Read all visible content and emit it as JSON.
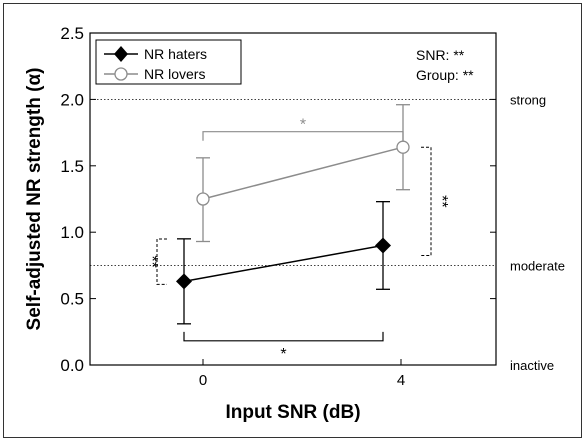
{
  "chart_data": {
    "type": "line",
    "xlabel": "Input SNR (dB)",
    "ylabel": "Self-adjusted NR strength (α)",
    "x": [
      0,
      4
    ],
    "x_ticks": [
      "0",
      "4"
    ],
    "ylim": [
      0,
      2.5
    ],
    "y_ticks": [
      "0.0",
      "0.5",
      "1.0",
      "1.5",
      "2.0",
      "2.5"
    ],
    "series": [
      {
        "name": "NR haters",
        "color": "#000000",
        "marker": "diamond-filled",
        "y": [
          0.63,
          0.9
        ],
        "err_low": [
          0.31,
          0.57
        ],
        "err_high": [
          0.95,
          1.23
        ]
      },
      {
        "name": "NR lovers",
        "color": "#8c8c8c",
        "marker": "circle-open",
        "y": [
          1.25,
          1.64
        ],
        "err_low": [
          0.93,
          1.32
        ],
        "err_high": [
          1.56,
          1.96
        ]
      }
    ],
    "reference_lines": [
      {
        "y": 2.0,
        "label": "strong"
      },
      {
        "y": 0.75,
        "label": "moderate"
      },
      {
        "y": 0.0,
        "label": "inactive"
      }
    ],
    "stats_text": [
      "SNR: **",
      "Group: **"
    ],
    "significance": [
      {
        "label": "*",
        "between": "NR lovers 0 vs 4 dB",
        "color": "#8c8c8c"
      },
      {
        "label": "*",
        "between": "NR haters 0 vs 4 dB",
        "color": "#000000"
      },
      {
        "label": "**",
        "between": "groups at 0 dB",
        "color": "#000000"
      },
      {
        "label": "**",
        "between": "groups at 4 dB",
        "color": "#000000"
      }
    ],
    "legend": "top-left",
    "grid": false
  }
}
